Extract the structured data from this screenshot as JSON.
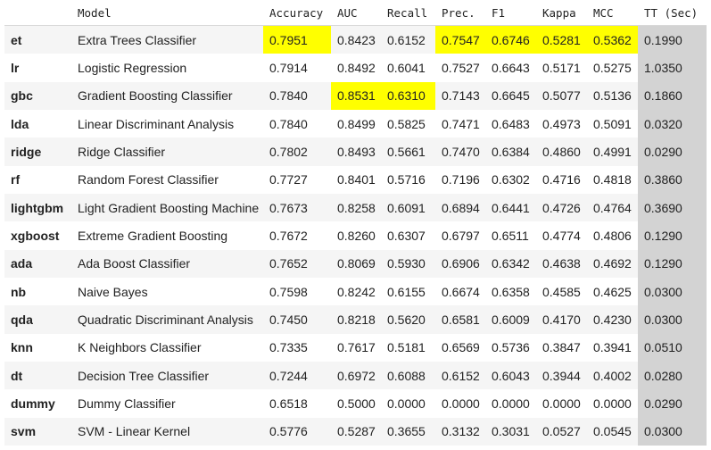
{
  "table": {
    "highlight_color": "#ffff00",
    "tt_column_color": "#d3d3d3",
    "columns": [
      "",
      "Model",
      "Accuracy",
      "AUC",
      "Recall",
      "Prec.",
      "F1",
      "Kappa",
      "MCC",
      "TT (Sec)"
    ],
    "rows": [
      {
        "id": "et",
        "model": "Extra Trees Classifier",
        "values": [
          "0.7951",
          "0.8423",
          "0.6152",
          "0.7547",
          "0.6746",
          "0.5281",
          "0.5362",
          "0.1990"
        ],
        "best": [
          0,
          3,
          4,
          5,
          6
        ]
      },
      {
        "id": "lr",
        "model": "Logistic Regression",
        "values": [
          "0.7914",
          "0.8492",
          "0.6041",
          "0.7527",
          "0.6643",
          "0.5171",
          "0.5275",
          "1.0350"
        ],
        "best": []
      },
      {
        "id": "gbc",
        "model": "Gradient Boosting Classifier",
        "values": [
          "0.7840",
          "0.8531",
          "0.6310",
          "0.7143",
          "0.6645",
          "0.5077",
          "0.5136",
          "0.1860"
        ],
        "best": [
          1,
          2
        ]
      },
      {
        "id": "lda",
        "model": "Linear Discriminant Analysis",
        "values": [
          "0.7840",
          "0.8499",
          "0.5825",
          "0.7471",
          "0.6483",
          "0.4973",
          "0.5091",
          "0.0320"
        ],
        "best": []
      },
      {
        "id": "ridge",
        "model": "Ridge Classifier",
        "values": [
          "0.7802",
          "0.8493",
          "0.5661",
          "0.7470",
          "0.6384",
          "0.4860",
          "0.4991",
          "0.0290"
        ],
        "best": []
      },
      {
        "id": "rf",
        "model": "Random Forest Classifier",
        "values": [
          "0.7727",
          "0.8401",
          "0.5716",
          "0.7196",
          "0.6302",
          "0.4716",
          "0.4818",
          "0.3860"
        ],
        "best": []
      },
      {
        "id": "lightgbm",
        "model": "Light Gradient Boosting Machine",
        "values": [
          "0.7673",
          "0.8258",
          "0.6091",
          "0.6894",
          "0.6441",
          "0.4726",
          "0.4764",
          "0.3690"
        ],
        "best": []
      },
      {
        "id": "xgboost",
        "model": "Extreme Gradient Boosting",
        "values": [
          "0.7672",
          "0.8260",
          "0.6307",
          "0.6797",
          "0.6511",
          "0.4774",
          "0.4806",
          "0.1290"
        ],
        "best": []
      },
      {
        "id": "ada",
        "model": "Ada Boost Classifier",
        "values": [
          "0.7652",
          "0.8069",
          "0.5930",
          "0.6906",
          "0.6342",
          "0.4638",
          "0.4692",
          "0.1290"
        ],
        "best": []
      },
      {
        "id": "nb",
        "model": "Naive Bayes",
        "values": [
          "0.7598",
          "0.8242",
          "0.6155",
          "0.6674",
          "0.6358",
          "0.4585",
          "0.4625",
          "0.0300"
        ],
        "best": []
      },
      {
        "id": "qda",
        "model": "Quadratic Discriminant Analysis",
        "values": [
          "0.7450",
          "0.8218",
          "0.5620",
          "0.6581",
          "0.6009",
          "0.4170",
          "0.4230",
          "0.0300"
        ],
        "best": []
      },
      {
        "id": "knn",
        "model": "K Neighbors Classifier",
        "values": [
          "0.7335",
          "0.7617",
          "0.5181",
          "0.6569",
          "0.5736",
          "0.3847",
          "0.3941",
          "0.0510"
        ],
        "best": []
      },
      {
        "id": "dt",
        "model": "Decision Tree Classifier",
        "values": [
          "0.7244",
          "0.6972",
          "0.6088",
          "0.6152",
          "0.6043",
          "0.3944",
          "0.4002",
          "0.0280"
        ],
        "best": []
      },
      {
        "id": "dummy",
        "model": "Dummy Classifier",
        "values": [
          "0.6518",
          "0.5000",
          "0.0000",
          "0.0000",
          "0.0000",
          "0.0000",
          "0.0000",
          "0.0290"
        ],
        "best": []
      },
      {
        "id": "svm",
        "model": "SVM - Linear Kernel",
        "values": [
          "0.5776",
          "0.5287",
          "0.3655",
          "0.3132",
          "0.3031",
          "0.0527",
          "0.0545",
          "0.0300"
        ],
        "best": []
      }
    ]
  }
}
